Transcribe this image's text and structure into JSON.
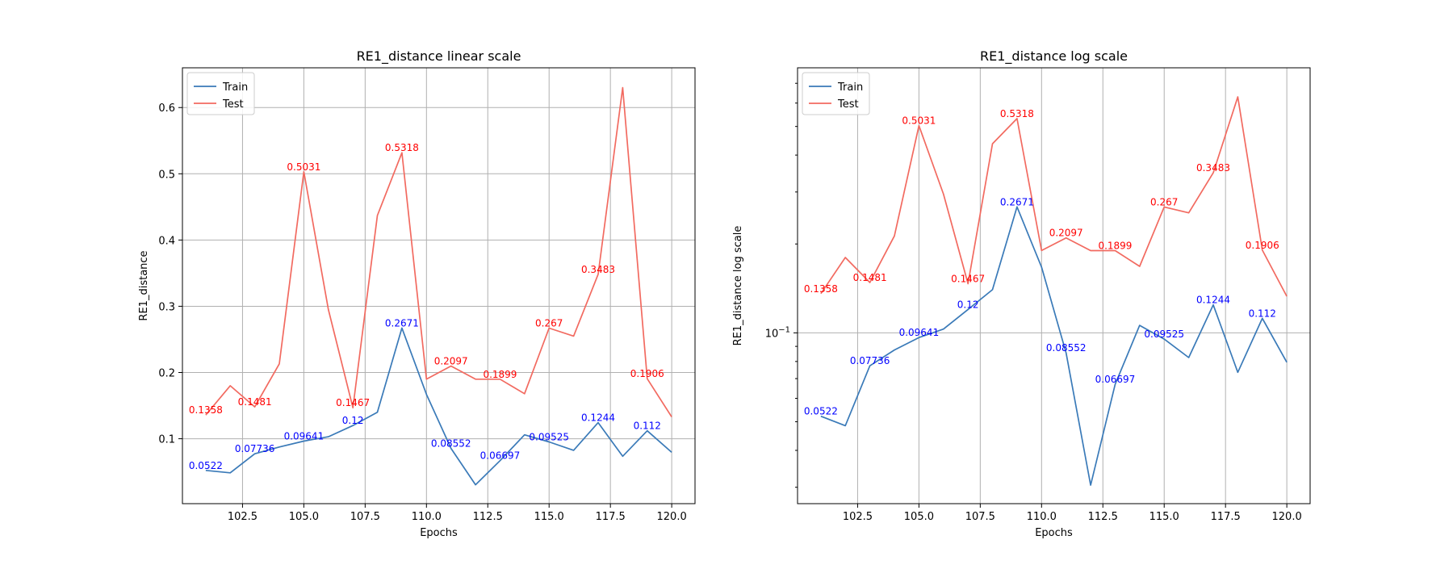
{
  "colors": {
    "train": "#3a7ab8",
    "test": "#f26a60",
    "train_label": "#0000ff",
    "test_label": "#ff0000",
    "grid": "#b0b0b0"
  },
  "chart_data": [
    {
      "type": "line",
      "title": "RE1_distance linear scale",
      "xlabel": "Epochs",
      "ylabel": "RE1_distance",
      "yscale": "linear",
      "grid": true,
      "legend_position": "top-left",
      "xlim": [
        100.05,
        120.95
      ],
      "ylim": [
        0.002,
        0.66
      ],
      "x_ticks": [
        102.5,
        105.0,
        107.5,
        110.0,
        112.5,
        115.0,
        117.5,
        120.0
      ],
      "x_tick_labels": [
        "102.5",
        "105.0",
        "107.5",
        "110.0",
        "112.5",
        "115.0",
        "117.5",
        "120.0"
      ],
      "y_ticks": [
        0.1,
        0.2,
        0.3,
        0.4,
        0.5,
        0.6
      ],
      "y_tick_labels": [
        "0.1",
        "0.2",
        "0.3",
        "0.4",
        "0.5",
        "0.6"
      ],
      "x": [
        101,
        102,
        103,
        104,
        105,
        106,
        107,
        108,
        109,
        110,
        111,
        112,
        113,
        114,
        115,
        116,
        117,
        118,
        119,
        120
      ],
      "series": [
        {
          "name": "Train",
          "color": "train",
          "label_color": "train_label",
          "values": [
            0.0522,
            0.0485,
            0.07736,
            0.0875,
            0.09641,
            0.103,
            0.12,
            0.14,
            0.2671,
            0.167,
            0.08552,
            0.0305,
            0.06697,
            0.106,
            0.09525,
            0.0825,
            0.1244,
            0.0735,
            0.112,
            0.0795
          ],
          "annotations": [
            {
              "i": 0,
              "text": "0.0522"
            },
            {
              "i": 2,
              "text": "0.07736"
            },
            {
              "i": 4,
              "text": "0.09641"
            },
            {
              "i": 6,
              "text": "0.12"
            },
            {
              "i": 8,
              "text": "0.2671"
            },
            {
              "i": 10,
              "text": "0.08552"
            },
            {
              "i": 12,
              "text": "0.06697"
            },
            {
              "i": 14,
              "text": "0.09525"
            },
            {
              "i": 16,
              "text": "0.1244"
            },
            {
              "i": 18,
              "text": "0.112"
            }
          ]
        },
        {
          "name": "Test",
          "color": "test",
          "label_color": "test_label",
          "values": [
            0.1358,
            0.18,
            0.1481,
            0.213,
            0.5031,
            0.295,
            0.1467,
            0.437,
            0.5318,
            0.19,
            0.2097,
            0.1899,
            0.1899,
            0.168,
            0.267,
            0.255,
            0.3483,
            0.63,
            0.1906,
            0.133
          ],
          "annotations": [
            {
              "i": 0,
              "text": "0.1358"
            },
            {
              "i": 2,
              "text": "0.1481"
            },
            {
              "i": 4,
              "text": "0.5031"
            },
            {
              "i": 6,
              "text": "0.1467"
            },
            {
              "i": 8,
              "text": "0.5318"
            },
            {
              "i": 10,
              "text": "0.2097"
            },
            {
              "i": 12,
              "text": "0.1899"
            },
            {
              "i": 14,
              "text": "0.267"
            },
            {
              "i": 16,
              "text": "0.3483"
            },
            {
              "i": 18,
              "text": "0.1906"
            }
          ]
        }
      ]
    },
    {
      "type": "line",
      "title": "RE1_distance log scale",
      "xlabel": "Epochs",
      "ylabel": "RE1_distance log scale",
      "yscale": "log",
      "grid": true,
      "legend_position": "top-left",
      "xlim": [
        100.05,
        120.95
      ],
      "ylim": [
        0.0264,
        0.79
      ],
      "x_ticks": [
        102.5,
        105.0,
        107.5,
        110.0,
        112.5,
        115.0,
        117.5,
        120.0
      ],
      "x_tick_labels": [
        "102.5",
        "105.0",
        "107.5",
        "110.0",
        "112.5",
        "115.0",
        "117.5",
        "120.0"
      ],
      "y_ticks": [
        0.1
      ],
      "y_tick_labels": [
        "10^-1"
      ],
      "x": [
        101,
        102,
        103,
        104,
        105,
        106,
        107,
        108,
        109,
        110,
        111,
        112,
        113,
        114,
        115,
        116,
        117,
        118,
        119,
        120
      ],
      "series": [
        {
          "name": "Train",
          "color": "train",
          "label_color": "train_label",
          "values": [
            0.0522,
            0.0485,
            0.07736,
            0.0875,
            0.09641,
            0.103,
            0.12,
            0.14,
            0.2671,
            0.167,
            0.08552,
            0.0305,
            0.06697,
            0.106,
            0.09525,
            0.0825,
            0.1244,
            0.0735,
            0.112,
            0.0795
          ],
          "annotations": [
            {
              "i": 0,
              "text": "0.0522"
            },
            {
              "i": 2,
              "text": "0.07736"
            },
            {
              "i": 4,
              "text": "0.09641"
            },
            {
              "i": 6,
              "text": "0.12"
            },
            {
              "i": 8,
              "text": "0.2671"
            },
            {
              "i": 10,
              "text": "0.08552"
            },
            {
              "i": 12,
              "text": "0.06697"
            },
            {
              "i": 14,
              "text": "0.09525"
            },
            {
              "i": 16,
              "text": "0.1244"
            },
            {
              "i": 18,
              "text": "0.112"
            }
          ]
        },
        {
          "name": "Test",
          "color": "test",
          "label_color": "test_label",
          "values": [
            0.1358,
            0.18,
            0.1481,
            0.213,
            0.5031,
            0.295,
            0.1467,
            0.437,
            0.5318,
            0.19,
            0.2097,
            0.1899,
            0.1899,
            0.168,
            0.267,
            0.255,
            0.3483,
            0.63,
            0.1906,
            0.133
          ],
          "annotations": [
            {
              "i": 0,
              "text": "0.1358"
            },
            {
              "i": 2,
              "text": "0.1481"
            },
            {
              "i": 4,
              "text": "0.5031"
            },
            {
              "i": 6,
              "text": "0.1467"
            },
            {
              "i": 8,
              "text": "0.5318"
            },
            {
              "i": 10,
              "text": "0.2097"
            },
            {
              "i": 12,
              "text": "0.1899"
            },
            {
              "i": 14,
              "text": "0.267"
            },
            {
              "i": 16,
              "text": "0.3483"
            },
            {
              "i": 18,
              "text": "0.1906"
            }
          ]
        }
      ]
    }
  ]
}
